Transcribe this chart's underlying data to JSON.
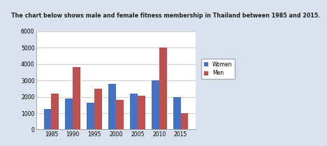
{
  "title": "The chart below shows male and female fitness membership in Thailand between 1985 and 2015.",
  "years": [
    1985,
    1990,
    1995,
    2000,
    2005,
    2010,
    2015
  ],
  "women": [
    1250,
    1900,
    1650,
    2800,
    2200,
    3000,
    2000
  ],
  "men": [
    2200,
    3800,
    2500,
    1800,
    2050,
    5000,
    1000
  ],
  "women_color": "#4472C4",
  "men_color": "#C0504D",
  "ylim": [
    0,
    6000
  ],
  "yticks": [
    0,
    1000,
    2000,
    3000,
    4000,
    5000,
    6000
  ],
  "bar_width": 0.35,
  "legend_labels": [
    "Women",
    "Men"
  ],
  "title_bg_color": "#cdd9ea",
  "chart_bg_color": "#ffffff",
  "chart_outer_color": "#d9e2ee",
  "outer_bg_color": "#d9e2ee",
  "title_fontsize": 5.8,
  "tick_fontsize": 5.5
}
